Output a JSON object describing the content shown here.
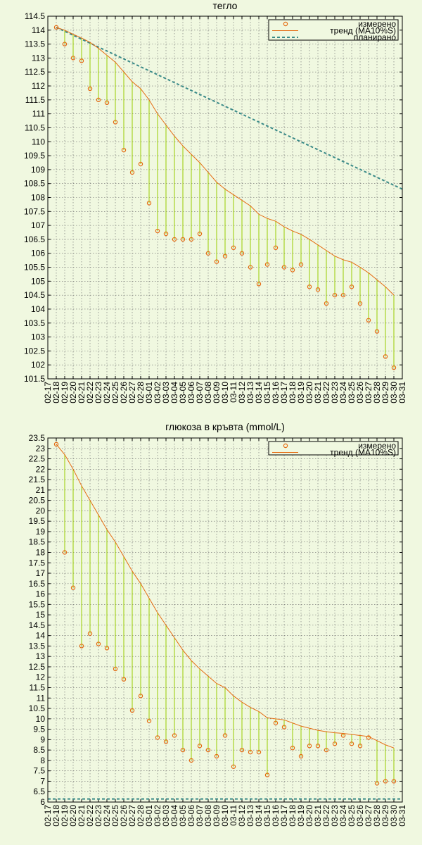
{
  "chart_data": [
    {
      "type": "scatter",
      "title": "тегло",
      "ylim": [
        101.5,
        114.5
      ],
      "ytick_step": 0.5,
      "xlabels": [
        "02-17",
        "02-18",
        "02-19",
        "02-20",
        "02-21",
        "02-22",
        "02-23",
        "02-24",
        "02-25",
        "02-26",
        "02-27",
        "02-28",
        "03-01",
        "03-02",
        "03-03",
        "03-04",
        "03-05",
        "03-06",
        "03-07",
        "03-08",
        "03-09",
        "03-10",
        "03-11",
        "03-12",
        "03-13",
        "03-14",
        "03-15",
        "03-16",
        "03-17",
        "03-18",
        "03-19",
        "03-20",
        "03-21",
        "03-22",
        "03-23",
        "03-24",
        "03-25",
        "03-26",
        "03-27",
        "03-28",
        "03-29",
        "03-30",
        "03-31"
      ],
      "grid": true,
      "legend_position": "top-right",
      "legend": {
        "measured": "измерено",
        "trend": "тренд (MA10%S)",
        "planned": "планирано"
      },
      "measured": [
        [
          "02-18",
          114.1
        ],
        [
          "02-19",
          113.5
        ],
        [
          "02-20",
          113.0
        ],
        [
          "02-21",
          112.9
        ],
        [
          "02-22",
          111.9
        ],
        [
          "02-23",
          111.5
        ],
        [
          "02-24",
          111.4
        ],
        [
          "02-25",
          110.7
        ],
        [
          "02-26",
          109.7
        ],
        [
          "02-27",
          108.9
        ],
        [
          "02-28",
          109.2
        ],
        [
          "03-01",
          107.8
        ],
        [
          "03-02",
          106.8
        ],
        [
          "03-03",
          106.7
        ],
        [
          "03-04",
          106.5
        ],
        [
          "03-05",
          106.5
        ],
        [
          "03-06",
          106.5
        ],
        [
          "03-07",
          106.7
        ],
        [
          "03-08",
          106.0
        ],
        [
          "03-09",
          105.7
        ],
        [
          "03-10",
          105.9
        ],
        [
          "03-11",
          106.2
        ],
        [
          "03-12",
          106.0
        ],
        [
          "03-13",
          105.5
        ],
        [
          "03-14",
          104.9
        ],
        [
          "03-15",
          105.6
        ],
        [
          "03-16",
          106.2
        ],
        [
          "03-17",
          105.5
        ],
        [
          "03-18",
          105.4
        ],
        [
          "03-19",
          105.6
        ],
        [
          "03-20",
          104.8
        ],
        [
          "03-21",
          104.7
        ],
        [
          "03-22",
          104.2
        ],
        [
          "03-23",
          104.5
        ],
        [
          "03-24",
          104.5
        ],
        [
          "03-25",
          104.8
        ],
        [
          "03-26",
          104.2
        ],
        [
          "03-27",
          103.6
        ],
        [
          "03-28",
          103.2
        ],
        [
          "03-29",
          102.3
        ],
        [
          "03-30",
          101.9
        ]
      ],
      "trend": [
        [
          "02-18",
          114.1
        ],
        [
          "02-19",
          114.0
        ],
        [
          "02-20",
          113.85
        ],
        [
          "02-21",
          113.72
        ],
        [
          "02-22",
          113.56
        ],
        [
          "02-23",
          113.35
        ],
        [
          "02-24",
          113.1
        ],
        [
          "02-25",
          112.85
        ],
        [
          "02-26",
          112.5
        ],
        [
          "02-27",
          112.15
        ],
        [
          "02-28",
          111.9
        ],
        [
          "03-01",
          111.5
        ],
        [
          "03-02",
          111.0
        ],
        [
          "03-03",
          110.6
        ],
        [
          "03-04",
          110.2
        ],
        [
          "03-05",
          109.85
        ],
        [
          "03-06",
          109.55
        ],
        [
          "03-07",
          109.25
        ],
        [
          "03-08",
          108.9
        ],
        [
          "03-09",
          108.55
        ],
        [
          "03-10",
          108.3
        ],
        [
          "03-11",
          108.1
        ],
        [
          "03-12",
          107.9
        ],
        [
          "03-13",
          107.7
        ],
        [
          "03-14",
          107.4
        ],
        [
          "03-15",
          107.25
        ],
        [
          "03-16",
          107.15
        ],
        [
          "03-17",
          106.95
        ],
        [
          "03-18",
          106.8
        ],
        [
          "03-19",
          106.68
        ],
        [
          "03-20",
          106.5
        ],
        [
          "03-21",
          106.3
        ],
        [
          "03-22",
          106.1
        ],
        [
          "03-23",
          105.9
        ],
        [
          "03-24",
          105.77
        ],
        [
          "03-25",
          105.68
        ],
        [
          "03-26",
          105.5
        ],
        [
          "03-27",
          105.3
        ],
        [
          "03-28",
          105.05
        ],
        [
          "03-29",
          104.8
        ],
        [
          "03-30",
          104.5
        ]
      ],
      "planned": [
        [
          "02-18",
          114.1
        ],
        [
          "03-31",
          108.3
        ]
      ]
    },
    {
      "type": "scatter",
      "title": "глюкоза в кръвта (mmol/L)",
      "ylim": [
        6,
        23.5
      ],
      "ytick_step": 0.5,
      "xlabels": [
        "02-17",
        "02-18",
        "02-19",
        "02-20",
        "02-21",
        "02-22",
        "02-23",
        "02-24",
        "02-25",
        "02-26",
        "02-27",
        "02-28",
        "03-01",
        "03-02",
        "03-03",
        "03-04",
        "03-05",
        "03-06",
        "03-07",
        "03-08",
        "03-09",
        "03-10",
        "03-11",
        "03-12",
        "03-13",
        "03-14",
        "03-15",
        "03-16",
        "03-17",
        "03-18",
        "03-19",
        "03-20",
        "03-21",
        "03-22",
        "03-23",
        "03-24",
        "03-25",
        "03-26",
        "03-27",
        "03-28",
        "03-29",
        "03-30",
        "03-31"
      ],
      "grid": true,
      "legend_position": "top-right",
      "legend": {
        "measured": "измерено",
        "trend": "тренд (MA10%S)"
      },
      "measured": [
        [
          "02-18",
          23.2
        ],
        [
          "02-19",
          18.0
        ],
        [
          "02-20",
          16.3
        ],
        [
          "02-21",
          13.5
        ],
        [
          "02-22",
          14.1
        ],
        [
          "02-23",
          13.6
        ],
        [
          "02-24",
          13.4
        ],
        [
          "02-25",
          12.4
        ],
        [
          "02-26",
          11.9
        ],
        [
          "02-27",
          10.4
        ],
        [
          "02-28",
          11.1
        ],
        [
          "03-01",
          9.9
        ],
        [
          "03-02",
          9.1
        ],
        [
          "03-03",
          8.9
        ],
        [
          "03-04",
          9.2
        ],
        [
          "03-05",
          8.5
        ],
        [
          "03-06",
          8.0
        ],
        [
          "03-07",
          8.7
        ],
        [
          "03-08",
          8.5
        ],
        [
          "03-09",
          8.2
        ],
        [
          "03-10",
          9.2
        ],
        [
          "03-11",
          7.7
        ],
        [
          "03-12",
          8.5
        ],
        [
          "03-13",
          8.4
        ],
        [
          "03-14",
          8.4
        ],
        [
          "03-15",
          7.3
        ],
        [
          "03-16",
          9.8
        ],
        [
          "03-17",
          9.6
        ],
        [
          "03-18",
          8.6
        ],
        [
          "03-19",
          8.2
        ],
        [
          "03-20",
          8.7
        ],
        [
          "03-21",
          8.7
        ],
        [
          "03-22",
          8.5
        ],
        [
          "03-23",
          8.8
        ],
        [
          "03-24",
          9.2
        ],
        [
          "03-25",
          8.8
        ],
        [
          "03-26",
          8.7
        ],
        [
          "03-27",
          9.1
        ],
        [
          "03-28",
          6.9
        ],
        [
          "03-29",
          7.0
        ],
        [
          "03-30",
          7.0
        ]
      ],
      "trend": [
        [
          "02-18",
          23.2
        ],
        [
          "02-19",
          22.7
        ],
        [
          "02-20",
          22.0
        ],
        [
          "02-21",
          21.2
        ],
        [
          "02-22",
          20.5
        ],
        [
          "02-23",
          19.8
        ],
        [
          "02-24",
          19.1
        ],
        [
          "02-25",
          18.5
        ],
        [
          "02-26",
          17.8
        ],
        [
          "02-27",
          17.1
        ],
        [
          "02-28",
          16.5
        ],
        [
          "03-01",
          15.8
        ],
        [
          "03-02",
          15.1
        ],
        [
          "03-03",
          14.5
        ],
        [
          "03-04",
          13.9
        ],
        [
          "03-05",
          13.3
        ],
        [
          "03-06",
          12.8
        ],
        [
          "03-07",
          12.4
        ],
        [
          "03-08",
          12.05
        ],
        [
          "03-09",
          11.7
        ],
        [
          "03-10",
          11.5
        ],
        [
          "03-11",
          11.1
        ],
        [
          "03-12",
          10.8
        ],
        [
          "03-13",
          10.55
        ],
        [
          "03-14",
          10.35
        ],
        [
          "03-15",
          10.05
        ],
        [
          "03-16",
          10.0
        ],
        [
          "03-17",
          9.95
        ],
        [
          "03-18",
          9.8
        ],
        [
          "03-19",
          9.65
        ],
        [
          "03-20",
          9.55
        ],
        [
          "03-21",
          9.45
        ],
        [
          "03-22",
          9.38
        ],
        [
          "03-23",
          9.33
        ],
        [
          "03-24",
          9.3
        ],
        [
          "03-25",
          9.25
        ],
        [
          "03-26",
          9.2
        ],
        [
          "03-27",
          9.15
        ],
        [
          "03-28",
          8.95
        ],
        [
          "03-29",
          8.75
        ],
        [
          "03-30",
          8.6
        ]
      ],
      "baseline": 6.15
    }
  ]
}
